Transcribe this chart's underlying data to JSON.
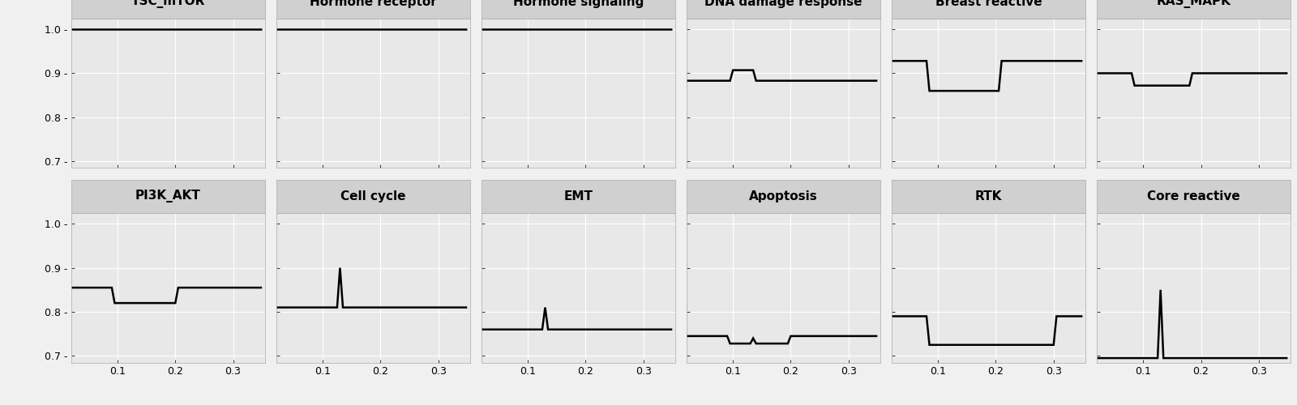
{
  "panels": [
    {
      "title": "TSC_mTOR",
      "row": 0,
      "col": 0,
      "x": [
        0.02,
        0.05,
        0.1,
        0.15,
        0.2,
        0.25,
        0.3,
        0.35
      ],
      "y": [
        1.0,
        1.0,
        1.0,
        1.0,
        1.0,
        1.0,
        1.0,
        1.0
      ]
    },
    {
      "title": "Hormone receptor",
      "row": 0,
      "col": 1,
      "x": [
        0.02,
        0.05,
        0.1,
        0.15,
        0.2,
        0.25,
        0.3,
        0.35
      ],
      "y": [
        1.0,
        1.0,
        1.0,
        1.0,
        1.0,
        1.0,
        1.0,
        1.0
      ]
    },
    {
      "title": "Hormone signaling",
      "row": 0,
      "col": 2,
      "x": [
        0.02,
        0.05,
        0.1,
        0.15,
        0.2,
        0.25,
        0.3,
        0.35
      ],
      "y": [
        1.0,
        1.0,
        1.0,
        1.0,
        1.0,
        1.0,
        1.0,
        1.0
      ]
    },
    {
      "title": "DNA damage response",
      "row": 0,
      "col": 3,
      "x": [
        0.02,
        0.09,
        0.095,
        0.1,
        0.105,
        0.13,
        0.135,
        0.14,
        0.145,
        0.2,
        0.25,
        0.3,
        0.35
      ],
      "y": [
        0.883,
        0.883,
        0.883,
        0.907,
        0.907,
        0.907,
        0.907,
        0.883,
        0.883,
        0.883,
        0.883,
        0.883,
        0.883
      ]
    },
    {
      "title": "Breast reactive",
      "row": 0,
      "col": 4,
      "x": [
        0.02,
        0.05,
        0.08,
        0.085,
        0.09,
        0.2,
        0.205,
        0.21,
        0.215,
        0.3,
        0.35
      ],
      "y": [
        0.928,
        0.928,
        0.928,
        0.86,
        0.86,
        0.86,
        0.86,
        0.928,
        0.928,
        0.928,
        0.928
      ]
    },
    {
      "title": "RAS_MAPK",
      "row": 0,
      "col": 5,
      "x": [
        0.02,
        0.08,
        0.085,
        0.09,
        0.175,
        0.18,
        0.185,
        0.3,
        0.35
      ],
      "y": [
        0.9,
        0.9,
        0.872,
        0.872,
        0.872,
        0.872,
        0.9,
        0.9,
        0.9
      ]
    },
    {
      "title": "PI3K_AKT",
      "row": 1,
      "col": 0,
      "x": [
        0.02,
        0.09,
        0.095,
        0.1,
        0.195,
        0.2,
        0.205,
        0.35
      ],
      "y": [
        0.855,
        0.855,
        0.82,
        0.82,
        0.82,
        0.82,
        0.855,
        0.855
      ]
    },
    {
      "title": "Cell cycle",
      "row": 1,
      "col": 1,
      "x": [
        0.02,
        0.12,
        0.125,
        0.13,
        0.135,
        0.14,
        0.145,
        0.2,
        0.35
      ],
      "y": [
        0.81,
        0.81,
        0.81,
        0.9,
        0.81,
        0.81,
        0.81,
        0.81,
        0.81
      ]
    },
    {
      "title": "EMT",
      "row": 1,
      "col": 2,
      "x": [
        0.02,
        0.12,
        0.125,
        0.13,
        0.135,
        0.14,
        0.145,
        0.2,
        0.35
      ],
      "y": [
        0.76,
        0.76,
        0.76,
        0.81,
        0.76,
        0.76,
        0.76,
        0.76,
        0.76
      ]
    },
    {
      "title": "Apoptosis",
      "row": 1,
      "col": 3,
      "x": [
        0.02,
        0.09,
        0.095,
        0.1,
        0.13,
        0.135,
        0.14,
        0.195,
        0.2,
        0.35
      ],
      "y": [
        0.745,
        0.745,
        0.728,
        0.728,
        0.728,
        0.74,
        0.728,
        0.728,
        0.745,
        0.745
      ]
    },
    {
      "title": "RTK",
      "row": 1,
      "col": 4,
      "x": [
        0.02,
        0.08,
        0.085,
        0.09,
        0.295,
        0.3,
        0.305,
        0.35
      ],
      "y": [
        0.79,
        0.79,
        0.725,
        0.725,
        0.725,
        0.725,
        0.79,
        0.79
      ]
    },
    {
      "title": "Core reactive",
      "row": 1,
      "col": 5,
      "x": [
        0.02,
        0.12,
        0.125,
        0.13,
        0.135,
        0.14,
        0.145,
        0.2,
        0.35
      ],
      "y": [
        0.695,
        0.695,
        0.695,
        0.85,
        0.695,
        0.695,
        0.695,
        0.695,
        0.695
      ]
    }
  ],
  "ylim": [
    0.685,
    1.025
  ],
  "xlim": [
    0.02,
    0.355
  ],
  "yticks": [
    0.7,
    0.8,
    0.9,
    1.0
  ],
  "ytick_labels": [
    "0.7 -",
    "0.8 -",
    "0.9 -",
    "1.0 -"
  ],
  "xticks": [
    0.1,
    0.2,
    0.3
  ],
  "xtick_labels": [
    "0.1",
    "0.2",
    "0.3"
  ],
  "line_color": "#000000",
  "line_width": 1.8,
  "strip_bg": "#d0d0d0",
  "plot_bg": "#e8e8e8",
  "outer_bg": "#dcdcdc",
  "title_fontsize": 11,
  "tick_fontsize": 9,
  "title_fontweight": "bold",
  "fig_bg": "#f0f0f0",
  "grid_color": "#ffffff",
  "grid_lw": 0.8
}
